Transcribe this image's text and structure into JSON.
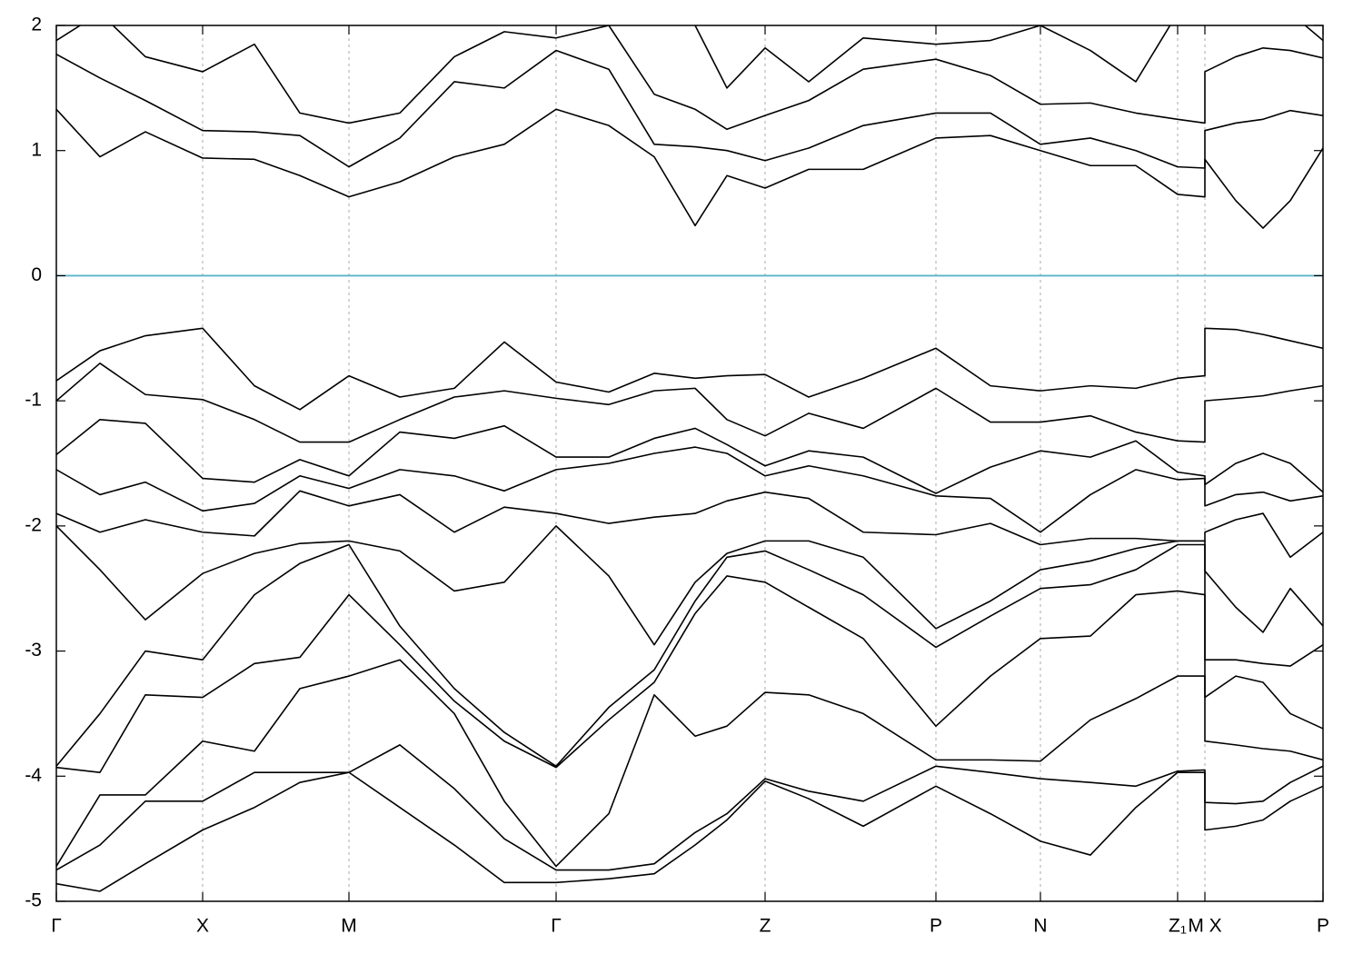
{
  "chart_data": {
    "type": "line",
    "x": [
      0,
      48,
      98,
      161,
      218,
      268,
      322,
      378,
      438,
      493,
      550,
      608,
      658,
      703,
      738,
      780,
      828,
      888,
      968,
      1028,
      1083,
      1138,
      1188,
      1234,
      1264,
      1264,
      1298,
      1328,
      1358,
      1394
    ],
    "xlim": [
      0,
      1394
    ],
    "xticks": [
      {
        "value": 0,
        "label": "Γ"
      },
      {
        "value": 161,
        "label": "X"
      },
      {
        "value": 322,
        "label": "M"
      },
      {
        "value": 550,
        "label": "Γ"
      },
      {
        "value": 780,
        "label": "Z"
      },
      {
        "value": 968,
        "label": "P"
      },
      {
        "value": 1083,
        "label": "N"
      },
      {
        "value": 1234,
        "label": "Z₁"
      },
      {
        "value": 1264,
        "label": "M X"
      },
      {
        "value": 1394,
        "label": "P"
      }
    ],
    "ylim": [
      -5,
      2
    ],
    "yticks": [
      -5,
      -4,
      -3,
      -2,
      -1,
      0,
      1,
      2
    ],
    "grid": true,
    "color": "#000000",
    "fermi_level": 0,
    "fermi_color": "#5ab4c8",
    "series": [
      {
        "values": [
          2.1,
          2.2,
          2.2,
          2.2,
          2.1,
          2.2,
          2.3,
          2.2,
          2.05,
          2.1,
          2.0,
          2.2,
          2.2,
          2.0,
          1.5,
          1.82,
          1.55,
          1.9,
          1.85,
          1.88,
          2.0,
          1.8,
          1.55,
          2.1,
          2.2,
          2.2,
          2.2,
          2.2,
          2.1,
          1.88
        ]
      },
      {
        "values": [
          1.88,
          2.1,
          1.75,
          1.63,
          1.85,
          1.3,
          1.22,
          1.3,
          1.75,
          1.95,
          1.9,
          2.0,
          1.45,
          1.33,
          1.17,
          1.28,
          1.4,
          1.65,
          1.73,
          1.6,
          1.37,
          1.38,
          1.3,
          1.25,
          1.22,
          1.63,
          1.75,
          1.82,
          1.8,
          1.74
        ]
      },
      {
        "values": [
          1.77,
          1.58,
          1.4,
          1.16,
          1.15,
          1.12,
          0.87,
          1.1,
          1.55,
          1.5,
          1.8,
          1.65,
          1.05,
          1.03,
          1.0,
          0.92,
          1.02,
          1.2,
          1.3,
          1.3,
          1.05,
          1.1,
          1.0,
          0.87,
          0.86,
          1.16,
          1.22,
          1.25,
          1.32,
          1.28
        ]
      },
      {
        "values": [
          1.33,
          0.95,
          1.15,
          0.94,
          0.93,
          0.8,
          0.63,
          0.75,
          0.95,
          1.05,
          1.33,
          1.2,
          0.95,
          0.4,
          0.8,
          0.7,
          0.85,
          0.85,
          1.1,
          1.12,
          1.0,
          0.88,
          0.88,
          0.65,
          0.63,
          0.93,
          0.6,
          0.38,
          0.6,
          1.02
        ]
      },
      {
        "values": [
          -0.84,
          -0.6,
          -0.48,
          -0.42,
          -0.88,
          -1.07,
          -0.8,
          -0.97,
          -0.9,
          -0.53,
          -0.85,
          -0.93,
          -0.78,
          -0.82,
          -0.8,
          -0.79,
          -0.97,
          -0.82,
          -0.58,
          -0.88,
          -0.92,
          -0.88,
          -0.9,
          -0.82,
          -0.8,
          -0.42,
          -0.43,
          -0.47,
          -0.52,
          -0.58
        ]
      },
      {
        "values": [
          -1.0,
          -0.7,
          -0.95,
          -0.99,
          -1.15,
          -1.33,
          -1.33,
          -1.15,
          -0.97,
          -0.92,
          -0.98,
          -1.03,
          -0.92,
          -0.9,
          -1.15,
          -1.28,
          -1.1,
          -1.22,
          -0.9,
          -1.17,
          -1.17,
          -1.12,
          -1.25,
          -1.32,
          -1.33,
          -1.0,
          -0.98,
          -0.96,
          -0.92,
          -0.88
        ]
      },
      {
        "values": [
          -1.43,
          -1.15,
          -1.18,
          -1.62,
          -1.65,
          -1.47,
          -1.6,
          -1.25,
          -1.3,
          -1.2,
          -1.45,
          -1.45,
          -1.3,
          -1.22,
          -1.35,
          -1.52,
          -1.4,
          -1.45,
          -1.74,
          -1.53,
          -1.4,
          -1.45,
          -1.32,
          -1.57,
          -1.6,
          -1.67,
          -1.5,
          -1.42,
          -1.5,
          -1.73
        ]
      },
      {
        "values": [
          -1.55,
          -1.75,
          -1.65,
          -1.88,
          -1.82,
          -1.6,
          -1.7,
          -1.55,
          -1.6,
          -1.72,
          -1.55,
          -1.5,
          -1.42,
          -1.37,
          -1.42,
          -1.6,
          -1.52,
          -1.6,
          -1.76,
          -1.78,
          -2.05,
          -1.75,
          -1.55,
          -1.63,
          -1.62,
          -1.84,
          -1.75,
          -1.73,
          -1.8,
          -1.76
        ]
      },
      {
        "values": [
          -1.9,
          -2.05,
          -1.95,
          -2.05,
          -2.08,
          -1.72,
          -1.84,
          -1.75,
          -2.05,
          -1.85,
          -1.9,
          -1.98,
          -1.93,
          -1.9,
          -1.8,
          -1.73,
          -1.78,
          -2.05,
          -2.07,
          -1.98,
          -2.15,
          -2.1,
          -2.1,
          -2.12,
          -2.12,
          -2.05,
          -1.95,
          -1.9,
          -2.25,
          -2.05
        ]
      },
      {
        "values": [
          -2.0,
          -2.35,
          -2.75,
          -2.38,
          -2.22,
          -2.14,
          -2.12,
          -2.2,
          -2.52,
          -2.45,
          -2.0,
          -2.4,
          -2.95,
          -2.45,
          -2.22,
          -2.12,
          -2.12,
          -2.25,
          -2.82,
          -2.6,
          -2.35,
          -2.28,
          -2.18,
          -2.12,
          -2.12,
          -2.36,
          -2.65,
          -2.85,
          -2.5,
          -2.8
        ]
      },
      {
        "values": [
          -3.92,
          -3.5,
          -3.0,
          -3.07,
          -2.55,
          -2.3,
          -2.15,
          -2.8,
          -3.3,
          -3.65,
          -3.92,
          -3.45,
          -3.15,
          -2.6,
          -2.25,
          -2.2,
          -2.35,
          -2.55,
          -2.97,
          -2.72,
          -2.5,
          -2.47,
          -2.35,
          -2.15,
          -2.15,
          -3.07,
          -3.07,
          -3.1,
          -3.12,
          -2.95
        ]
      },
      {
        "values": [
          -3.93,
          -3.97,
          -3.35,
          -3.37,
          -3.1,
          -3.05,
          -2.55,
          -2.95,
          -3.4,
          -3.72,
          -3.93,
          -3.55,
          -3.25,
          -2.7,
          -2.4,
          -2.45,
          -2.65,
          -2.9,
          -3.6,
          -3.2,
          -2.9,
          -2.88,
          -2.55,
          -2.52,
          -2.55,
          -3.37,
          -3.2,
          -3.25,
          -3.5,
          -3.62
        ]
      },
      {
        "values": [
          -4.72,
          -4.15,
          -4.15,
          -3.72,
          -3.8,
          -3.3,
          -3.2,
          -3.07,
          -3.5,
          -4.2,
          -4.72,
          -4.3,
          -3.35,
          -3.68,
          -3.6,
          -3.33,
          -3.35,
          -3.5,
          -3.87,
          -3.87,
          -3.88,
          -3.55,
          -3.38,
          -3.2,
          -3.2,
          -3.72,
          -3.75,
          -3.78,
          -3.8,
          -3.87
        ]
      },
      {
        "values": [
          -4.75,
          -4.55,
          -4.2,
          -4.2,
          -3.97,
          -3.97,
          -3.97,
          -3.75,
          -4.1,
          -4.5,
          -4.75,
          -4.75,
          -4.7,
          -4.45,
          -4.3,
          -4.02,
          -4.12,
          -4.2,
          -3.92,
          -3.97,
          -4.02,
          -4.05,
          -4.08,
          -3.96,
          -3.95,
          -4.21,
          -4.22,
          -4.2,
          -4.05,
          -3.92
        ]
      },
      {
        "values": [
          -4.86,
          -4.92,
          -4.7,
          -4.43,
          -4.25,
          -4.05,
          -3.97,
          -4.25,
          -4.55,
          -4.85,
          -4.85,
          -4.82,
          -4.78,
          -4.55,
          -4.35,
          -4.04,
          -4.18,
          -4.4,
          -4.08,
          -4.3,
          -4.52,
          -4.63,
          -4.25,
          -3.97,
          -3.97,
          -4.43,
          -4.4,
          -4.35,
          -4.2,
          -4.08
        ]
      }
    ]
  }
}
